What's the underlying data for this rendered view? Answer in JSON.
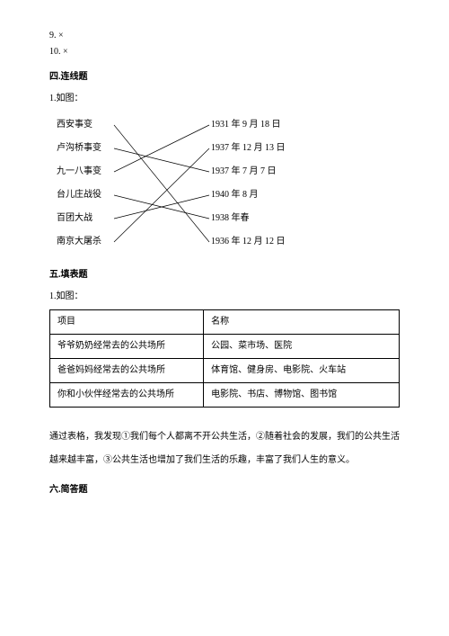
{
  "completion": {
    "item9": "9. ×",
    "item10": "10. ×"
  },
  "section4": {
    "title": "四.连线题",
    "prompt": "1.如图：",
    "left": [
      "西安事变",
      "卢沟桥事变",
      "九一八事变",
      "台儿庄战役",
      "百团大战",
      "南京大屠杀"
    ],
    "right": [
      "1931 年 9 月 18 日",
      "1937 年 12 月 13 日",
      "1937 年 7 月 7 日",
      "1940 年 8 月",
      "1938 年春",
      "1936 年 12 月 12 日"
    ],
    "connections": [
      [
        0,
        5
      ],
      [
        1,
        2
      ],
      [
        2,
        0
      ],
      [
        3,
        4
      ],
      [
        4,
        3
      ],
      [
        5,
        1
      ]
    ],
    "line_stroke": "#000000",
    "line_width": 0.7
  },
  "section5": {
    "title": "五.填表题",
    "prompt": "1.如图：",
    "headers": [
      "项目",
      "名称"
    ],
    "rows": [
      [
        "爷爷奶奶经常去的公共场所",
        "公园、菜市场、医院"
      ],
      [
        "爸爸妈妈经常去的公共场所",
        "体育馆、健身房、电影院、火车站"
      ],
      [
        "你和小伙伴经常去的公共场所",
        "电影院、书店、博物馆、图书馆"
      ]
    ],
    "paragraph": "通过表格，我发现①我们每个人都离不开公共生活，②随着社会的发展，我们的公共生活越来越丰富，③公共生活也增加了我们生活的乐趣，丰富了我们人生的意义。"
  },
  "section6": {
    "title": "六.简答题"
  }
}
